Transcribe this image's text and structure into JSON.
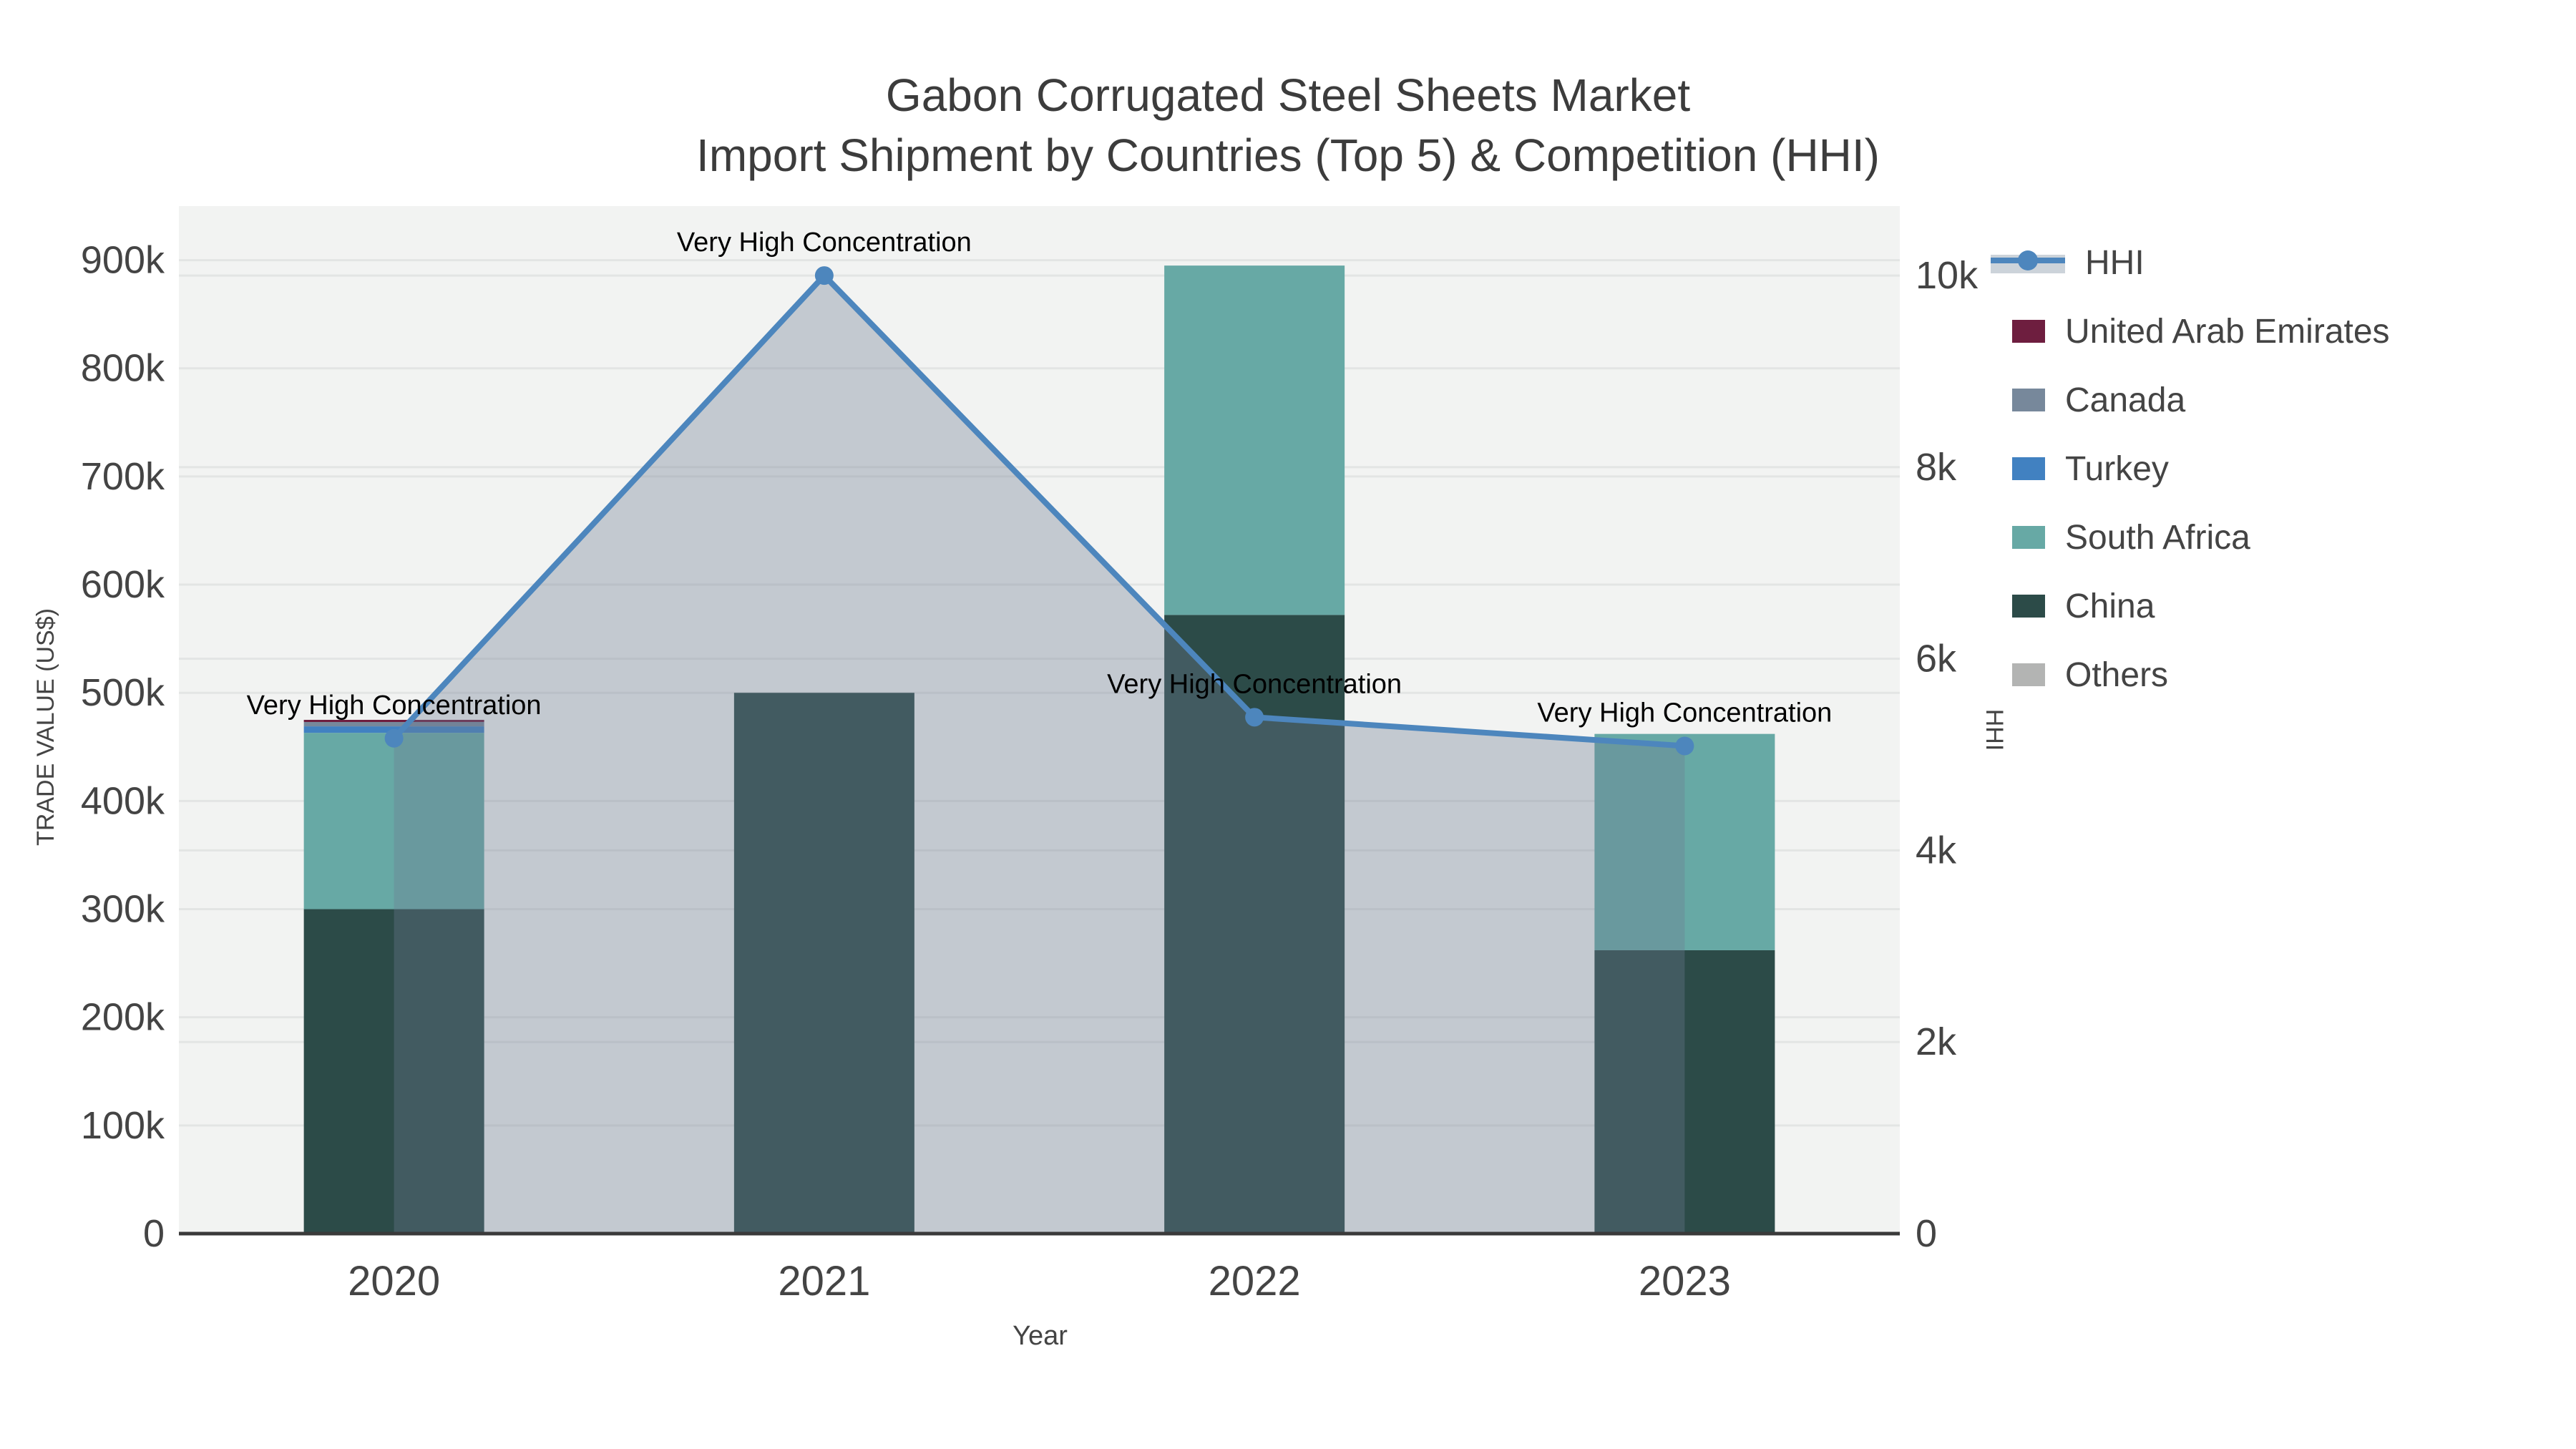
{
  "title": {
    "line1": "Gabon Corrugated Steel Sheets Market",
    "line2": "Import Shipment by Countries (Top 5) & Competition (HHI)"
  },
  "axes": {
    "y_left": {
      "label": "TRADE VALUE (US$)",
      "tick_values": [
        0,
        100000,
        200000,
        300000,
        400000,
        500000,
        600000,
        700000,
        800000,
        900000
      ],
      "tick_labels": [
        "0",
        "100k",
        "200k",
        "300k",
        "400k",
        "500k",
        "600k",
        "700k",
        "800k",
        "900k"
      ]
    },
    "y_right": {
      "label": "HHI",
      "tick_values": [
        0,
        2000,
        4000,
        6000,
        8000,
        10000
      ],
      "tick_labels": [
        "0",
        "2k",
        "4k",
        "6k",
        "8k",
        "10k"
      ]
    },
    "x": {
      "label": "Year",
      "tick_labels": [
        "2020",
        "2021",
        "2022",
        "2023"
      ]
    }
  },
  "legend": [
    {
      "label": "HHI",
      "type": "line",
      "color": "#4d86bd",
      "band": "#ccd3da"
    },
    {
      "label": "United Arab Emirates",
      "type": "box",
      "color": "#6e1e3f"
    },
    {
      "label": "Canada",
      "type": "box",
      "color": "#77889b"
    },
    {
      "label": "Turkey",
      "type": "box",
      "color": "#4181c1"
    },
    {
      "label": "South Africa",
      "type": "box",
      "color": "#67a9a5"
    },
    {
      "label": "China",
      "type": "box",
      "color": "#2c4b48"
    },
    {
      "label": "Others",
      "type": "box",
      "color": "#b3b4b3"
    }
  ],
  "chart_data": {
    "type": "bar+line",
    "title": "Gabon Corrugated Steel Sheets Market — Import Shipment by Countries (Top 5) & Competition (HHI)",
    "categories": [
      "2020",
      "2021",
      "2022",
      "2023"
    ],
    "xlabel": "Year",
    "ylabel_left": "TRADE VALUE (US$)",
    "ylabel_right": "HHI",
    "ylim_left": [
      0,
      950000
    ],
    "ylim_right": [
      0,
      10725
    ],
    "grid": true,
    "legend_position": "right",
    "bar_stack_order_bottom_to_top": [
      "China",
      "South Africa",
      "Turkey",
      "Canada",
      "United Arab Emirates",
      "Others"
    ],
    "series": [
      {
        "name": "China",
        "color": "#2c4b48",
        "values": [
          300000,
          500000,
          572000,
          262000
        ]
      },
      {
        "name": "South Africa",
        "color": "#67a9a5",
        "values": [
          163000,
          0,
          323000,
          200000
        ]
      },
      {
        "name": "Turkey",
        "color": "#4181c1",
        "values": [
          6000,
          0,
          0,
          0
        ]
      },
      {
        "name": "Canada",
        "color": "#77889b",
        "values": [
          4000,
          0,
          0,
          0
        ]
      },
      {
        "name": "United Arab Emirates",
        "color": "#6e1e3f",
        "values": [
          2000,
          0,
          0,
          0
        ]
      },
      {
        "name": "Others",
        "color": "#b3b4b3",
        "values": [
          0,
          0,
          0,
          0
        ]
      }
    ],
    "totals": [
      475000,
      500000,
      895000,
      462000
    ],
    "hhi": {
      "name": "HHI",
      "color": "#4d86bd",
      "area_fill": "rgba(108,124,146,0.35)",
      "values": [
        5170,
        10000,
        5390,
        5090
      ]
    },
    "annotations": [
      {
        "text": "Very High Concentration",
        "category": "2020"
      },
      {
        "text": "Very High Concentration",
        "category": "2021"
      },
      {
        "text": "Very High Concentration",
        "category": "2022"
      },
      {
        "text": "Very High Concentration",
        "category": "2023"
      }
    ]
  },
  "colors": {
    "plot_bg": "#f2f3f2",
    "grid": "#e3e5e4",
    "axis_line": "#3a3a3a",
    "tick_text": "#444444",
    "annotation_text": "#000000"
  }
}
